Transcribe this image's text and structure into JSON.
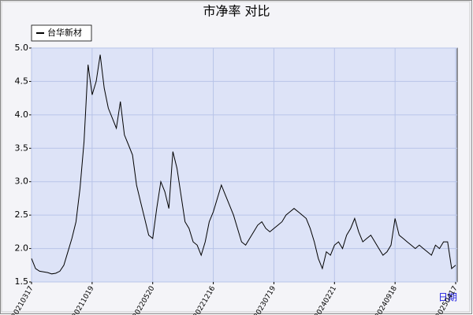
{
  "chart_data": {
    "type": "line",
    "title": "市净率  对比",
    "x_label": "日期",
    "categories": [
      "20210317",
      null,
      null,
      null,
      null,
      null,
      null,
      null,
      null,
      null,
      null,
      null,
      null,
      null,
      null,
      "20211019",
      null,
      null,
      null,
      null,
      null,
      null,
      null,
      null,
      null,
      null,
      null,
      null,
      null,
      null,
      "20220520",
      null,
      null,
      null,
      null,
      null,
      null,
      null,
      null,
      null,
      null,
      null,
      null,
      null,
      null,
      "20221216",
      null,
      null,
      null,
      null,
      null,
      null,
      null,
      null,
      null,
      null,
      null,
      null,
      null,
      null,
      "20230719",
      null,
      null,
      null,
      null,
      null,
      null,
      null,
      null,
      null,
      null,
      null,
      null,
      null,
      null,
      "20240221",
      null,
      null,
      null,
      null,
      null,
      null,
      null,
      null,
      null,
      null,
      null,
      null,
      null,
      null,
      "20240918",
      null,
      null,
      null,
      null,
      null,
      null,
      null,
      null,
      null,
      null,
      null,
      null,
      null,
      null,
      "20250417"
    ],
    "series": [
      {
        "name": "台华新材",
        "color": "#000000",
        "values": [
          1.85,
          1.7,
          1.66,
          1.65,
          1.64,
          1.62,
          1.63,
          1.66,
          1.75,
          1.95,
          2.15,
          2.4,
          2.9,
          3.6,
          4.75,
          4.3,
          4.5,
          4.9,
          4.4,
          4.1,
          3.95,
          3.8,
          4.2,
          3.7,
          3.55,
          3.4,
          2.95,
          2.7,
          2.45,
          2.2,
          2.15,
          2.6,
          3.0,
          2.85,
          2.6,
          3.45,
          3.2,
          2.8,
          2.4,
          2.3,
          2.1,
          2.05,
          1.9,
          2.1,
          2.4,
          2.55,
          2.75,
          2.95,
          2.8,
          2.65,
          2.5,
          2.3,
          2.1,
          2.05,
          2.15,
          2.25,
          2.35,
          2.4,
          2.3,
          2.25,
          2.3,
          2.35,
          2.4,
          2.5,
          2.55,
          2.6,
          2.55,
          2.5,
          2.45,
          2.3,
          2.1,
          1.85,
          1.7,
          1.95,
          1.9,
          2.05,
          2.1,
          2.0,
          2.2,
          2.3,
          2.45,
          2.25,
          2.1,
          2.15,
          2.2,
          2.1,
          2.0,
          1.9,
          1.95,
          2.05,
          2.45,
          2.2,
          2.15,
          2.1,
          2.05,
          2.0,
          2.05,
          2.0,
          1.95,
          1.9,
          2.05,
          2.0,
          2.1,
          2.1,
          1.7,
          1.75
        ]
      }
    ],
    "ylim": [
      1.5,
      5.0
    ],
    "yticks": [
      {
        "value": 1.5,
        "label": "1.5"
      },
      {
        "value": 2,
        "label": "2.0"
      },
      {
        "value": 2.5,
        "label": "2.5"
      },
      {
        "value": 3,
        "label": "3.0"
      },
      {
        "value": 3.5,
        "label": "3.5"
      },
      {
        "value": 4,
        "label": "4.0"
      },
      {
        "value": 4.5,
        "label": "4.5"
      },
      {
        "value": 5,
        "label": "5.0"
      }
    ],
    "grid": true,
    "legend": "top-left"
  }
}
